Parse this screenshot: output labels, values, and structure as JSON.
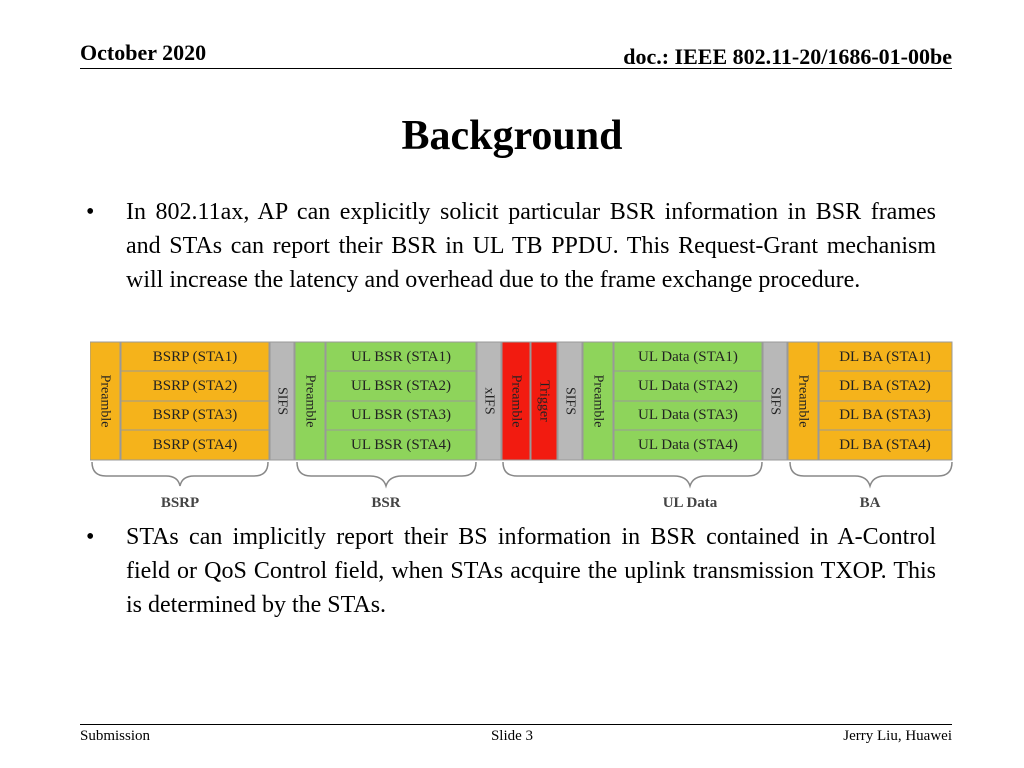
{
  "header": {
    "date": "October 2020",
    "doc": "doc.: IEEE 802.11-20/1686-01-00be"
  },
  "title": "Background",
  "bullets": [
    {
      "marker": "•",
      "text": "In 802.11ax, AP can explicitly solicit particular BSR information in BSR frames and STAs can report their BSR in UL TB PPDU. This Request-Grant mechanism will increase the latency and overhead due to the frame exchange procedure."
    },
    {
      "marker": "•",
      "text": "STAs can implicitly report their BS information in BSR contained in A-Control field or QoS Control field, when STAs acquire the uplink transmission TXOP. This is determined by the STAs."
    }
  ],
  "diagram": {
    "preamble": "Preamble",
    "sifs": "SIFS",
    "xifs": "xIFS",
    "trigger_preamble": "Preamble",
    "trigger": "Trigger",
    "bsrp_frames": [
      "BSRP (STA1)",
      "BSRP (STA2)",
      "BSRP (STA3)",
      "BSRP (STA4)"
    ],
    "bsr_frames": [
      "UL BSR (STA1)",
      "UL BSR (STA2)",
      "UL BSR (STA3)",
      "UL BSR (STA4)"
    ],
    "data_frames": [
      "UL Data (STA1)",
      "UL Data (STA2)",
      "UL Data (STA3)",
      "UL Data (STA4)"
    ],
    "ba_frames": [
      "DL BA (STA1)",
      "DL BA (STA2)",
      "DL BA (STA3)",
      "DL BA (STA4)"
    ],
    "labels": {
      "bsrp": "BSRP",
      "bsr": "BSR",
      "ul_data": "UL Data",
      "ba": "BA"
    },
    "colors": {
      "orange": "#f5b31b",
      "green": "#8ed45b",
      "gray": "#b8b8b8",
      "red": "#f21b10"
    }
  },
  "footer": {
    "left": "Submission",
    "center": "Slide 3",
    "right": "Jerry Liu, Huawei"
  }
}
